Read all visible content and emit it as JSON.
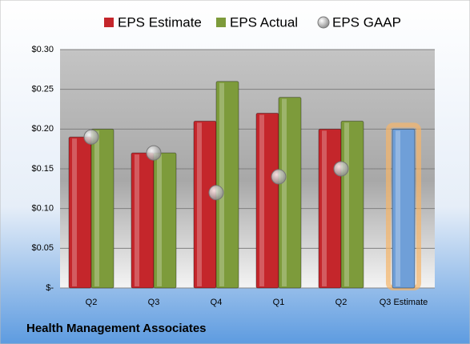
{
  "chart_data": {
    "type": "bar",
    "title": "Health Management Associates",
    "categories": [
      "Q2",
      "Q3",
      "Q4",
      "Q1",
      "Q2",
      "Q3 Estimate"
    ],
    "series": [
      {
        "name": "EPS Estimate",
        "color": "#c4262b",
        "kind": "bar",
        "values": [
          0.19,
          0.17,
          0.21,
          0.22,
          0.2,
          0.2
        ]
      },
      {
        "name": "EPS Actual",
        "color": "#7d9b3b",
        "kind": "bar",
        "values": [
          0.2,
          0.17,
          0.26,
          0.24,
          0.21,
          null
        ]
      },
      {
        "name": "EPS GAAP",
        "color": "#9a9a9a",
        "kind": "marker",
        "values": [
          0.19,
          0.17,
          0.12,
          0.14,
          0.15,
          null
        ]
      }
    ],
    "highlight": {
      "index": 5,
      "color": "#6f9fd8",
      "glow": "#f5b56a"
    },
    "ylim": [
      0,
      0.3
    ],
    "yticks": [
      {
        "value": 0,
        "label": "$-"
      },
      {
        "value": 0.05,
        "label": "$0.05"
      },
      {
        "value": 0.1,
        "label": "$0.10"
      },
      {
        "value": 0.15,
        "label": "$0.15"
      },
      {
        "value": 0.2,
        "label": "$0.20"
      },
      {
        "value": 0.25,
        "label": "$0.25"
      },
      {
        "value": 0.3,
        "label": "$0.30"
      }
    ],
    "grid": true,
    "legend": "top"
  }
}
